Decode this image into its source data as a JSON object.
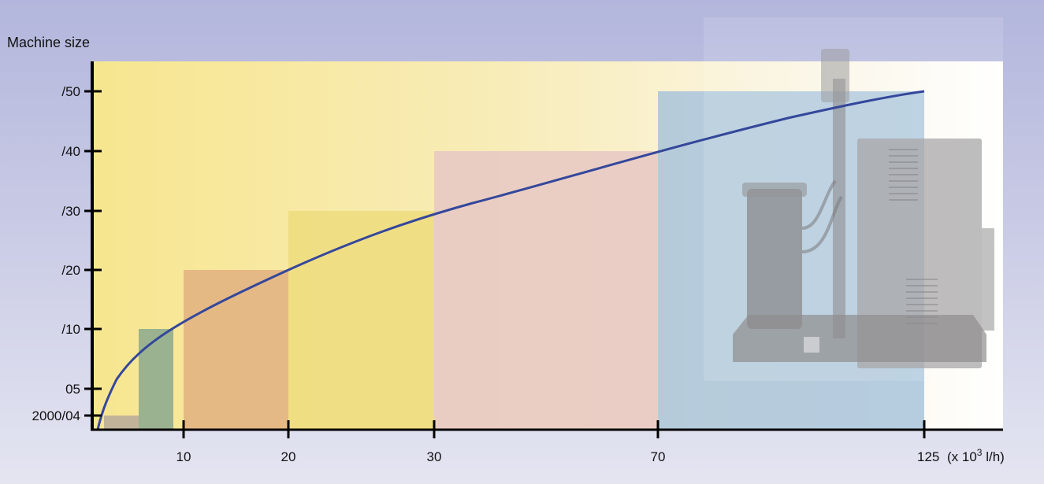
{
  "chart_data": {
    "type": "area",
    "ylabel": "Machine size",
    "xlabel_unit": "(x 10³ l/h)",
    "xlabel_unit_prefix": "(x 10",
    "xlabel_unit_exp": "3",
    "xlabel_unit_suffix": " l/h)",
    "x_ticks": [
      {
        "label": "10"
      },
      {
        "label": "20"
      },
      {
        "label": "30"
      },
      {
        "label": "70"
      },
      {
        "label": "125"
      }
    ],
    "y_ticks": [
      {
        "label": "2000/04"
      },
      {
        "label": "05"
      },
      {
        "label": "/10"
      },
      {
        "label": "/20"
      },
      {
        "label": "/30"
      },
      {
        "label": "/40"
      },
      {
        "label": "/50"
      }
    ],
    "steps": [
      {
        "size": "2000/04",
        "x_from": "",
        "x_to": "",
        "color": "#b7a99a"
      },
      {
        "size": "/10",
        "x_from": "",
        "x_to": "10",
        "color": "#8aa88e"
      },
      {
        "size": "/20",
        "x_from": "10",
        "x_to": "20",
        "color": "#e2b080"
      },
      {
        "size": "/30",
        "x_from": "20",
        "x_to": "30",
        "color": "#eedc7e"
      },
      {
        "size": "/40",
        "x_from": "30",
        "x_to": "70",
        "color": "#e8c8c4"
      },
      {
        "size": "/50",
        "x_from": "70",
        "x_to": "125",
        "color": "#a9c4dc"
      }
    ],
    "curve": {
      "color": "#34479b"
    },
    "grid": false,
    "legend": "none"
  }
}
